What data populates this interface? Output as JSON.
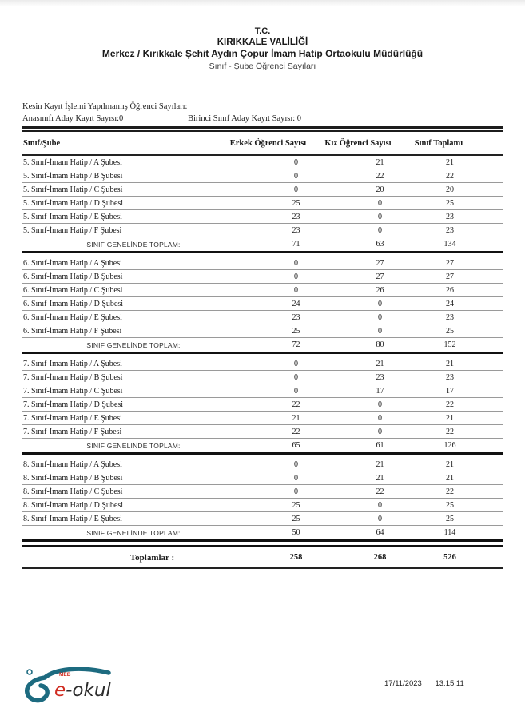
{
  "header": {
    "title_tc": "T.C.",
    "title_valilik": "KIRIKKALE VALİLİĞİ",
    "title_school": "Merkez / Kırıkkale Şehit Aydın Çopur İmam Hatip Ortaokulu Müdürlüğü",
    "title_report": "Sınıf - Şube Öğrenci Sayıları"
  },
  "info": {
    "heading": "Kesin Kayıt İşlemi Yapılmamış Öğrenci Sayıları:",
    "anasinifi": "Anasınıfı Aday Kayıt Sayısı:0",
    "birinci_sinif": "Birinci Sınıf Aday Kayıt Sayısı: 0"
  },
  "table": {
    "columns": [
      "Sınıf/Şube",
      "Erkek Öğrenci Sayısı",
      "Kız Öğrenci Sayısı",
      "Sınıf Toplamı"
    ],
    "group_total_label": "SINIF GENELİNDE TOPLAM:",
    "groups": [
      {
        "rows": [
          {
            "label": "5. Sınıf-İmam Hatip / A Şubesi",
            "values": [
              0,
              21,
              21
            ]
          },
          {
            "label": "5. Sınıf-İmam Hatip / B Şubesi",
            "values": [
              0,
              22,
              22
            ]
          },
          {
            "label": "5. Sınıf-İmam Hatip / C Şubesi",
            "values": [
              0,
              20,
              20
            ]
          },
          {
            "label": "5. Sınıf-İmam Hatip / D Şubesi",
            "values": [
              25,
              0,
              25
            ]
          },
          {
            "label": "5. Sınıf-İmam Hatip / E Şubesi",
            "values": [
              23,
              0,
              23
            ]
          },
          {
            "label": "5. Sınıf-İmam Hatip / F Şubesi",
            "values": [
              23,
              0,
              23
            ]
          }
        ],
        "totals": [
          71,
          63,
          134
        ]
      },
      {
        "rows": [
          {
            "label": "6. Sınıf-İmam Hatip / A Şubesi",
            "values": [
              0,
              27,
              27
            ]
          },
          {
            "label": "6. Sınıf-İmam Hatip / B Şubesi",
            "values": [
              0,
              27,
              27
            ]
          },
          {
            "label": "6. Sınıf-İmam Hatip / C Şubesi",
            "values": [
              0,
              26,
              26
            ]
          },
          {
            "label": "6. Sınıf-İmam Hatip / D Şubesi",
            "values": [
              24,
              0,
              24
            ]
          },
          {
            "label": "6. Sınıf-İmam Hatip / E Şubesi",
            "values": [
              23,
              0,
              23
            ]
          },
          {
            "label": "6. Sınıf-İmam Hatip / F Şubesi",
            "values": [
              25,
              0,
              25
            ]
          }
        ],
        "totals": [
          72,
          80,
          152
        ]
      },
      {
        "rows": [
          {
            "label": "7. Sınıf-İmam Hatip / A Şubesi",
            "values": [
              0,
              21,
              21
            ]
          },
          {
            "label": "7. Sınıf-İmam Hatip / B Şubesi",
            "values": [
              0,
              23,
              23
            ]
          },
          {
            "label": "7. Sınıf-İmam Hatip / C Şubesi",
            "values": [
              0,
              17,
              17
            ]
          },
          {
            "label": "7. Sınıf-İmam Hatip / D Şubesi",
            "values": [
              22,
              0,
              22
            ]
          },
          {
            "label": "7. Sınıf-İmam Hatip / E Şubesi",
            "values": [
              21,
              0,
              21
            ]
          },
          {
            "label": "7. Sınıf-İmam Hatip / F Şubesi",
            "values": [
              22,
              0,
              22
            ]
          }
        ],
        "totals": [
          65,
          61,
          126
        ]
      },
      {
        "rows": [
          {
            "label": "8. Sınıf-İmam Hatip / A Şubesi",
            "values": [
              0,
              21,
              21
            ]
          },
          {
            "label": "8. Sınıf-İmam Hatip / B Şubesi",
            "values": [
              0,
              21,
              21
            ]
          },
          {
            "label": "8. Sınıf-İmam Hatip / C Şubesi",
            "values": [
              0,
              22,
              22
            ]
          },
          {
            "label": "8. Sınıf-İmam Hatip / D Şubesi",
            "values": [
              25,
              0,
              25
            ]
          },
          {
            "label": "8. Sınıf-İmam Hatip / E Şubesi",
            "values": [
              25,
              0,
              25
            ]
          }
        ],
        "totals": [
          50,
          64,
          114
        ]
      }
    ],
    "grand_total_label": "Toplamlar :",
    "grand_totals": [
      258,
      268,
      526
    ]
  },
  "footer": {
    "logo_meb": "MEB",
    "logo_e": "e",
    "logo_rest": "-okul",
    "date": "17/11/2023",
    "time": "13:15:11"
  },
  "colors": {
    "logo_teal": "#1d6b80",
    "logo_red": "#d02c21",
    "rule_dark": "#1a1a1a",
    "row_line": "#9a9a9a"
  }
}
